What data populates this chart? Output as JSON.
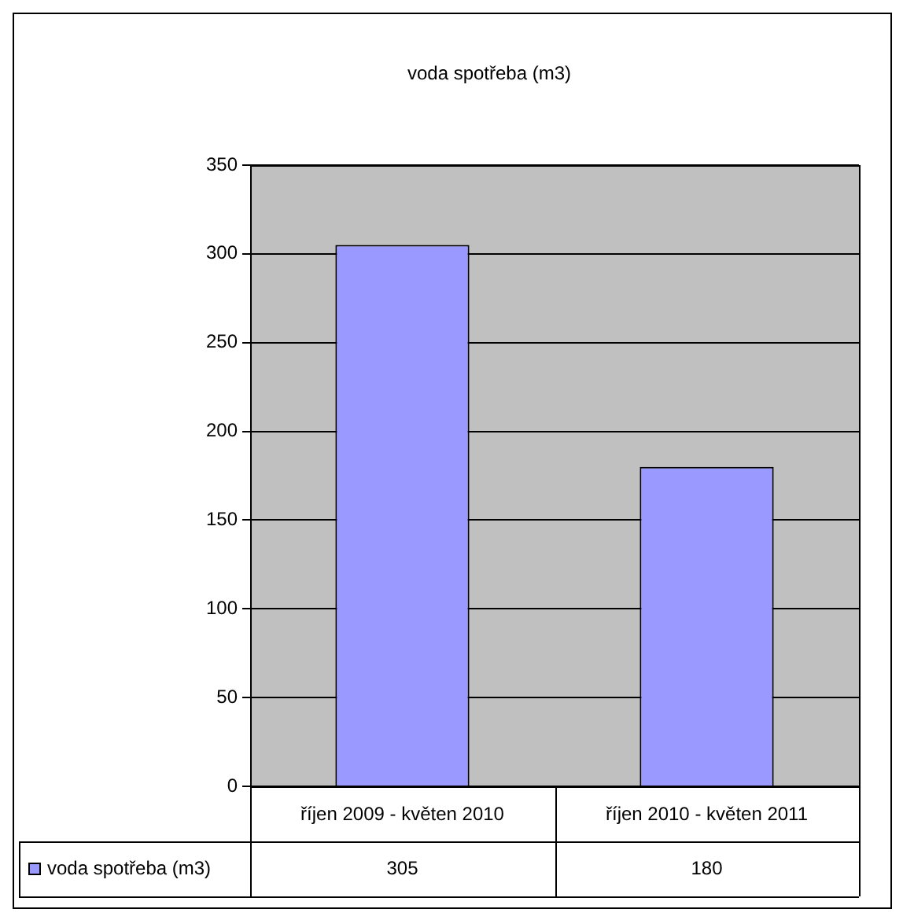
{
  "chart_data": {
    "type": "bar",
    "title": "voda spotřeba (m3)",
    "categories": [
      "říjen 2009 - květen 2010",
      "říjen 2010 - květen 2011"
    ],
    "series": [
      {
        "name": "voda spotřeba (m3)",
        "color": "#9999ff",
        "values": [
          305,
          180
        ]
      }
    ],
    "ylim": [
      0,
      350
    ],
    "yticks": [
      0,
      50,
      100,
      150,
      200,
      250,
      300,
      350
    ],
    "grid": "y",
    "legend": "bottom",
    "data_labels": true
  }
}
